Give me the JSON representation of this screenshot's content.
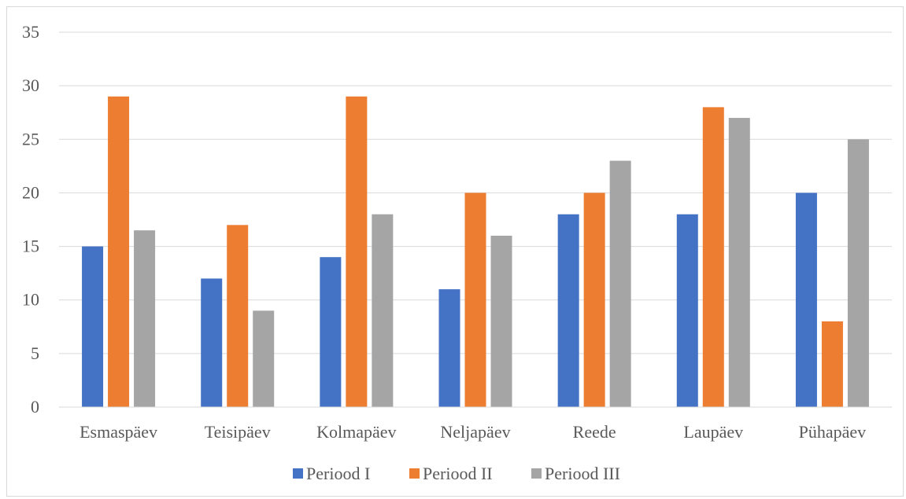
{
  "chart_data": {
    "type": "bar",
    "categories": [
      "Esmaspäev",
      "Teisipäev",
      "Kolmapäev",
      "Neljapäev",
      "Reede",
      "Laupäev",
      "Pühapäev"
    ],
    "series": [
      {
        "name": "Periood I",
        "color": "#4472c4",
        "values": [
          15,
          12,
          14,
          11,
          18,
          18,
          20
        ]
      },
      {
        "name": "Periood II",
        "color": "#ed7d31",
        "values": [
          29,
          17,
          29,
          20,
          20,
          28,
          8
        ]
      },
      {
        "name": "Periood III",
        "color": "#a5a5a5",
        "values": [
          16.5,
          9,
          18,
          16,
          23,
          27,
          25
        ]
      }
    ],
    "ylim": [
      0,
      35
    ],
    "yticks": [
      0,
      5,
      10,
      15,
      20,
      25,
      30,
      35
    ],
    "grid": true,
    "legend_position": "bottom",
    "title": "",
    "xlabel": "",
    "ylabel": ""
  }
}
